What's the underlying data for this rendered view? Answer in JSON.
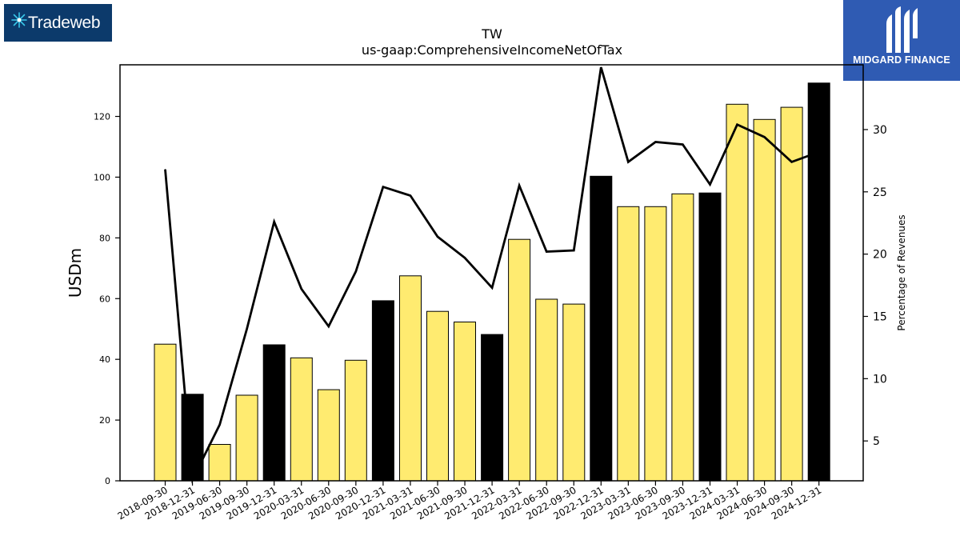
{
  "logos": {
    "left_text": "Tradeweb",
    "right_text": "MIDGARD FINANCE"
  },
  "chart_data": {
    "type": "bar",
    "title": "TW",
    "subtitle": "us-gaap:ComprehensiveIncomeNetOfTax",
    "ylabel": "USDm",
    "y2label": "Percentage of Revenues",
    "ylim": [
      0,
      137
    ],
    "y2lim": [
      1.8,
      35.2
    ],
    "yticks": [
      0,
      20,
      40,
      60,
      80,
      100,
      120
    ],
    "y2ticks": [
      5,
      10,
      15,
      20,
      25,
      30
    ],
    "categories": [
      "2018-09-30",
      "2018-12-31",
      "2019-06-30",
      "2019-09-30",
      "2019-12-31",
      "2020-03-31",
      "2020-06-30",
      "2020-09-30",
      "2020-12-31",
      "2021-03-31",
      "2021-06-30",
      "2021-09-30",
      "2021-12-31",
      "2022-03-31",
      "2022-06-30",
      "2022-09-30",
      "2022-12-31",
      "2023-03-31",
      "2023-06-30",
      "2023-09-30",
      "2023-12-31",
      "2024-03-31",
      "2024-06-30",
      "2024-09-30",
      "2024-12-31"
    ],
    "series": [
      {
        "values": [
          45,
          28.5,
          12,
          28.2,
          44.8,
          40.5,
          30,
          39.7,
          59.3,
          67.5,
          55.8,
          52.3,
          48.2,
          79.5,
          59.8,
          58.2,
          100.3,
          90.3,
          90.3,
          94.5,
          94.8,
          124,
          119,
          123,
          131
        ],
        "annual": [
          false,
          true,
          false,
          false,
          true,
          false,
          false,
          false,
          true,
          false,
          false,
          false,
          true,
          false,
          false,
          false,
          true,
          false,
          false,
          false,
          true,
          false,
          false,
          false,
          true
        ]
      },
      {
        "type": "line",
        "axis": "right",
        "values": [
          26.8,
          1.9,
          6.3,
          14.0,
          22.6,
          17.2,
          14.2,
          18.6,
          25.4,
          24.7,
          21.4,
          19.7,
          17.3,
          25.5,
          20.2,
          20.3,
          35.0,
          27.4,
          29.0,
          28.8,
          25.6,
          30.4,
          29.4,
          27.4,
          28.2
        ]
      }
    ],
    "colors": {
      "quarter": "#ffeb70",
      "annual": "#000000",
      "line": "#000000"
    },
    "grid": false
  }
}
